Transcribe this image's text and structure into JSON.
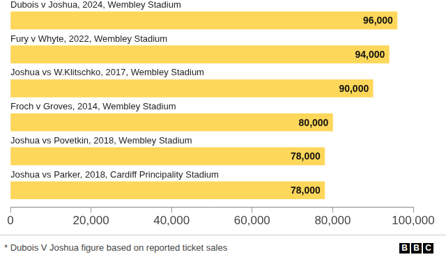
{
  "chart_data": {
    "type": "bar",
    "orientation": "horizontal",
    "categories": [
      "Dubois v Joshua, 2024, Wembley Stadium",
      "Fury v Whyte, 2022, Wembley Stadium",
      "Joshua vs W.Klitschko, 2017, Wembley Stadium",
      "Froch v Groves, 2014, Wembley Stadium",
      "Joshua vs Povetkin, 2018, Wembley Stadium",
      "Joshua vs Parker, 2018, Cardiff Principality Stadium"
    ],
    "values": [
      96000,
      94000,
      90000,
      80000,
      78000,
      78000
    ],
    "value_labels": [
      "96,000",
      "94,000",
      "90,000",
      "80,000",
      "78,000",
      "78,000"
    ],
    "color": "#fdd75a",
    "xlim": [
      0,
      100000
    ],
    "xticks": [
      0,
      {
        "value": 20000,
        "label": "20,000"
      },
      {
        "value": 40000,
        "label": "40,000"
      },
      {
        "value": 60000,
        "label": "60,000"
      },
      {
        "value": 80000,
        "label": "80,000"
      },
      {
        "value": 100000,
        "label": "100,000"
      }
    ],
    "grid": false,
    "data_labels": true,
    "footnote": "* Dubois V Joshua figure based on reported ticket sales",
    "source": "BBC"
  }
}
